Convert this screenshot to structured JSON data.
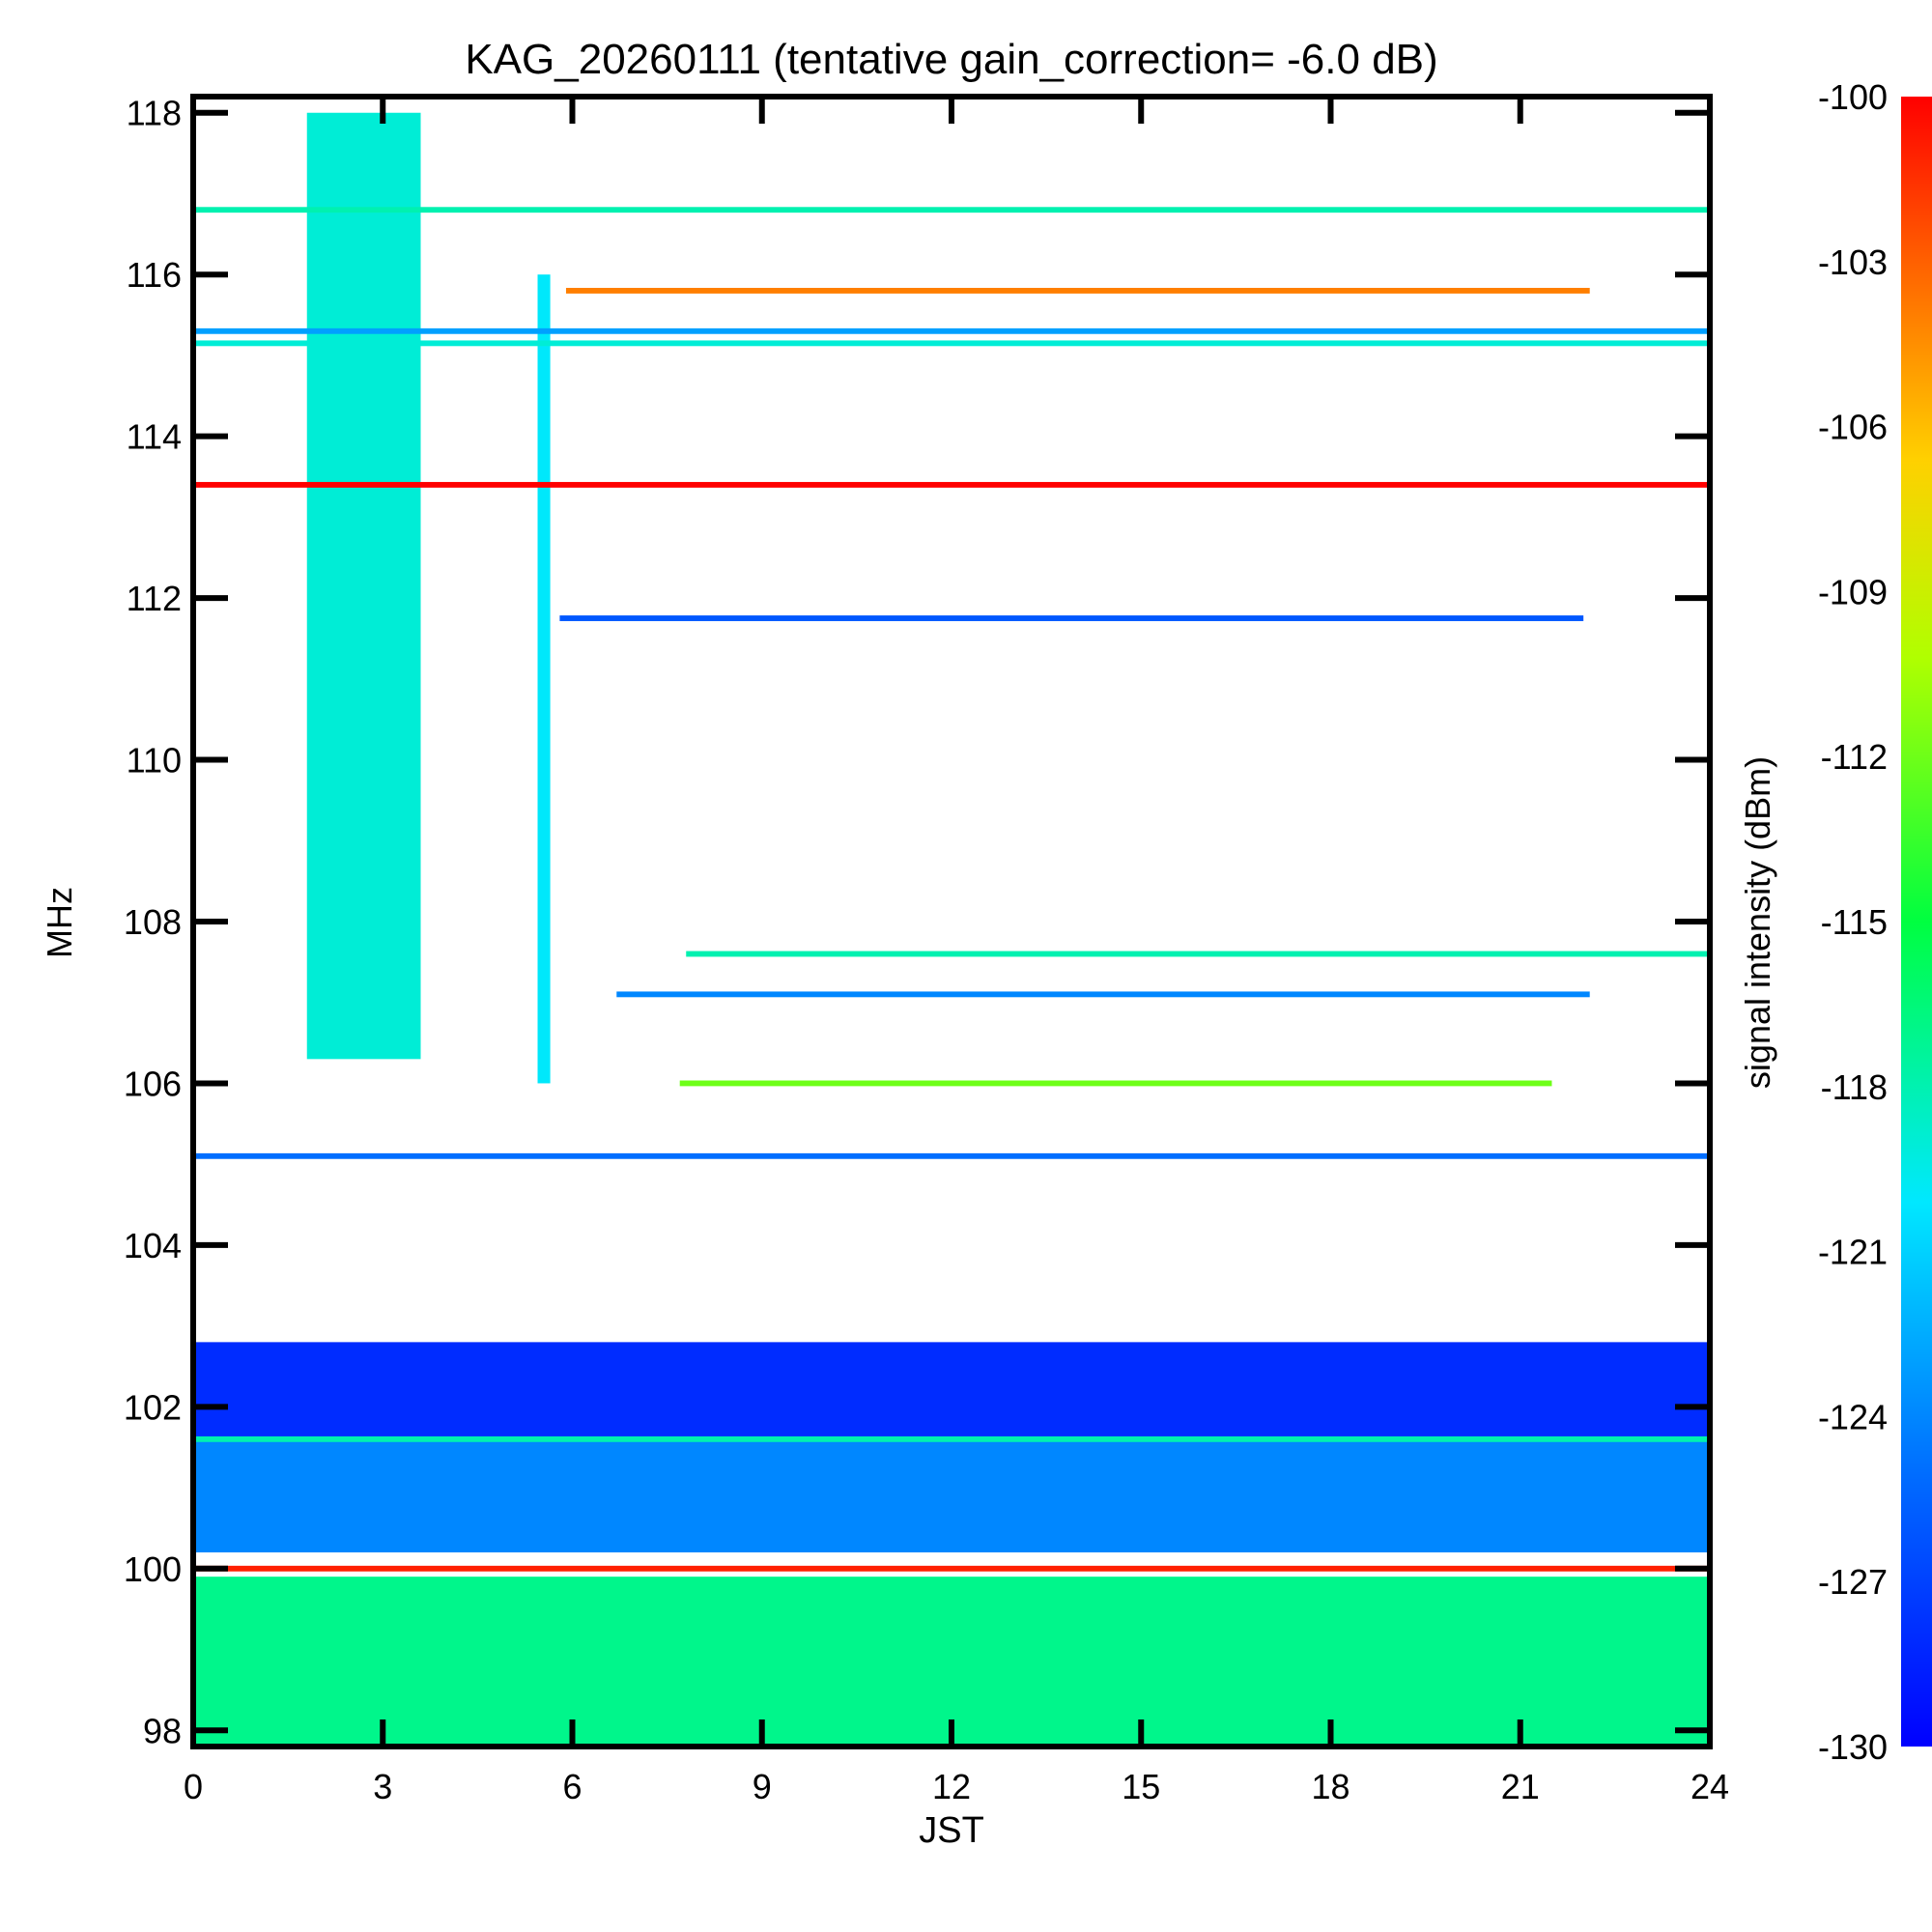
{
  "chart_data": {
    "type": "heatmap",
    "title": "KAG_20260111 (tentative gain_correction= -6.0 dB)",
    "xlabel": "JST",
    "ylabel": "MHz",
    "colorbar_label": "signal intensity (dBm)",
    "xlim": [
      0,
      24
    ],
    "ylim": [
      97.8,
      118.2
    ],
    "clim": [
      -130,
      -100
    ],
    "colormap": "rainbow (blue low, red high)",
    "x_ticks": [
      0,
      3,
      6,
      9,
      12,
      15,
      18,
      21,
      24
    ],
    "x_tick_labels": [
      "0",
      "3",
      "6",
      "9",
      "12",
      "15",
      "18",
      "21",
      "24"
    ],
    "y_ticks": [
      98,
      100,
      102,
      104,
      106,
      108,
      110,
      112,
      114,
      116,
      118
    ],
    "y_tick_labels": [
      "98",
      "100",
      "102",
      "104",
      "106",
      "108",
      "110",
      "112",
      "114",
      "116",
      "118"
    ],
    "colorbar_ticks": [
      -100,
      -103,
      -106,
      -109,
      -112,
      -115,
      -118,
      -121,
      -124,
      -127,
      -130
    ],
    "colorbar_tick_labels": [
      "-100",
      "-103",
      "-106",
      "-109",
      "-112",
      "-115",
      "-118",
      "-121",
      "-124",
      "-127",
      "-130"
    ],
    "features": [
      {
        "kind": "band",
        "desc": "strong continuous carrier",
        "freq": 100.0,
        "t0": 0,
        "t1": 24,
        "level": -101
      },
      {
        "kind": "band",
        "desc": "broadband floor 97.8-100 MHz",
        "freq_range": [
          97.8,
          99.9
        ],
        "t0": 0,
        "t1": 24,
        "level": -117
      },
      {
        "kind": "band",
        "desc": "cyan floor 100.2-101.6 MHz",
        "freq_range": [
          100.2,
          101.6
        ],
        "t0": 0,
        "t1": 24,
        "level": -124
      },
      {
        "kind": "band",
        "desc": "blue floor 101.6-102.8 MHz",
        "freq_range": [
          101.6,
          102.8
        ],
        "t0": 0,
        "t1": 24,
        "level": -128
      },
      {
        "kind": "band",
        "desc": "continuous carrier",
        "freq": 101.6,
        "t0": 0,
        "t1": 24,
        "level": -118
      },
      {
        "kind": "band",
        "desc": "continuous carrier",
        "freq": 105.1,
        "t0": 0,
        "t1": 24,
        "level": -125
      },
      {
        "kind": "band",
        "desc": "intermittent carrier",
        "freq": 106.0,
        "t0": 7.7,
        "t1": 21.5,
        "level": -112
      },
      {
        "kind": "band",
        "desc": "continuous carrier",
        "freq": 107.1,
        "t0": 6.7,
        "t1": 22.1,
        "level": -124
      },
      {
        "kind": "band",
        "desc": "intermittent carrier",
        "freq": 107.6,
        "t0": 7.8,
        "t1": 24,
        "level": -118
      },
      {
        "kind": "band",
        "desc": "continuous carrier",
        "freq": 111.75,
        "t0": 5.8,
        "t1": 22.0,
        "level": -126
      },
      {
        "kind": "band",
        "desc": "strong continuous carrier",
        "freq": 113.4,
        "t0": 0,
        "t1": 24,
        "level": -100
      },
      {
        "kind": "band",
        "desc": "continuous carrier",
        "freq": 115.15,
        "t0": 0,
        "t1": 24,
        "level": -119
      },
      {
        "kind": "band",
        "desc": "continuous carrier",
        "freq": 115.3,
        "t0": 0,
        "t1": 24,
        "level": -123
      },
      {
        "kind": "band",
        "desc": "strong carrier",
        "freq": 115.8,
        "t0": 5.9,
        "t1": 22.1,
        "level": -104
      },
      {
        "kind": "band",
        "desc": "continuous carrier",
        "freq": 116.8,
        "t0": 0,
        "t1": 24,
        "level": -118
      },
      {
        "kind": "burst",
        "desc": "broadband burst",
        "t0": 1.8,
        "t1": 3.6,
        "freq_range": [
          106.3,
          118.0
        ],
        "level": -119
      },
      {
        "kind": "burst",
        "desc": "broadband burst",
        "t0": 5.45,
        "t1": 5.65,
        "freq_range": [
          106.0,
          116.0
        ],
        "level": -120
      }
    ]
  }
}
